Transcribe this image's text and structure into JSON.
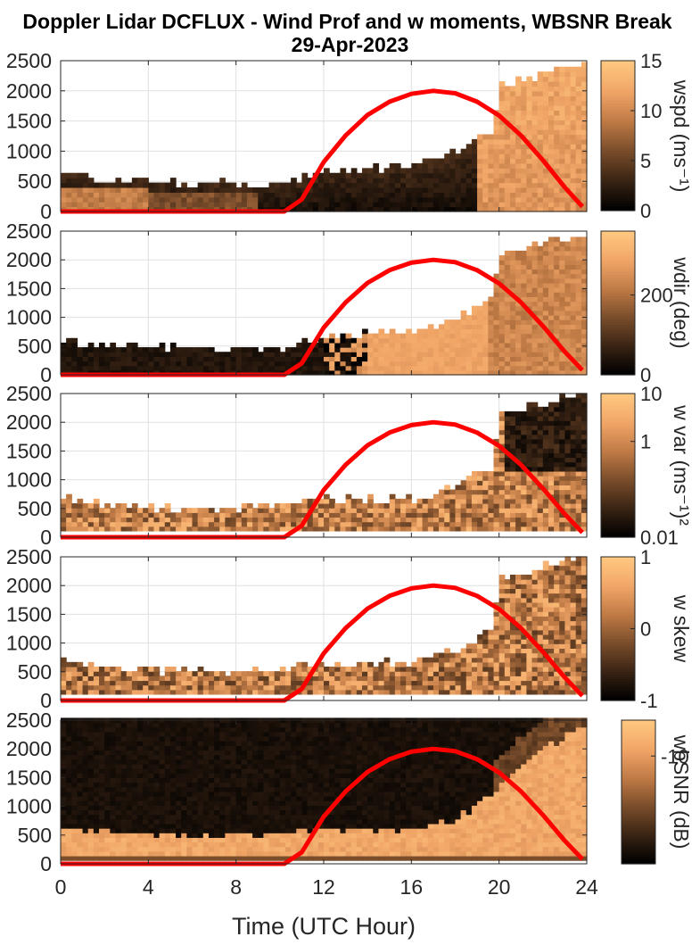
{
  "figure": {
    "title_line1": "Doppler Lidar DCFLUX - Wind Prof and w moments, WBSNR Break",
    "title_line2": "29-Apr-2023",
    "xlabel": "Time (UTC Hour)"
  },
  "colors": {
    "colormap": [
      "#000000",
      "#3a2414",
      "#7a4d2b",
      "#bf7a45",
      "#f0a567",
      "#ffc77f"
    ],
    "overlay_curve": "#ff0000",
    "grid": "#e0e0e0",
    "axis": "#262626"
  },
  "chart_data": [
    {
      "type": "heatmap",
      "panel": "wspd",
      "colorbar_label": "wspd (ms⁻¹)",
      "clim": [
        0,
        15
      ],
      "colorbar_ticks": [
        "0",
        "5",
        "10",
        "15"
      ],
      "x": {
        "range": [
          0,
          24
        ],
        "ticks": [
          "0",
          "4",
          "8",
          "12",
          "16",
          "20",
          "24"
        ]
      },
      "y": {
        "range": [
          0,
          2500
        ],
        "ticks": [
          "0",
          "500",
          "1000",
          "1500",
          "2000",
          "2500"
        ]
      },
      "grid": true,
      "data_extent_top_m": [
        [
          0,
          550
        ],
        [
          2,
          480
        ],
        [
          6,
          420
        ],
        [
          10,
          420
        ],
        [
          12,
          620
        ],
        [
          16,
          720
        ],
        [
          18,
          950
        ],
        [
          19.5,
          1300
        ],
        [
          20,
          2100
        ],
        [
          22,
          2250
        ],
        [
          24,
          2450
        ]
      ],
      "overlay_curve": {
        "x": [
          0,
          10.2,
          11,
          12,
          13,
          14,
          15,
          16,
          17,
          18,
          19,
          20,
          21,
          22,
          23,
          23.8
        ],
        "y": [
          0,
          0,
          200,
          820,
          1260,
          1600,
          1820,
          1950,
          2000,
          1960,
          1820,
          1590,
          1260,
          850,
          400,
          80
        ]
      }
    },
    {
      "type": "heatmap",
      "panel": "wdir",
      "colorbar_label": "wdir (deg)",
      "clim": [
        0,
        360
      ],
      "colorbar_ticks": [
        "0",
        "200"
      ],
      "x": {
        "range": [
          0,
          24
        ],
        "ticks": [
          "0",
          "4",
          "8",
          "12",
          "16",
          "20",
          "24"
        ]
      },
      "y": {
        "range": [
          0,
          2500
        ],
        "ticks": [
          "0",
          "500",
          "1000",
          "1500",
          "2000",
          "2500"
        ]
      },
      "grid": true,
      "data_extent_top_m": [
        [
          0,
          550
        ],
        [
          2,
          480
        ],
        [
          6,
          420
        ],
        [
          10,
          420
        ],
        [
          12,
          620
        ],
        [
          16,
          720
        ],
        [
          18,
          950
        ],
        [
          19.5,
          1300
        ],
        [
          20,
          2100
        ],
        [
          22,
          2250
        ],
        [
          24,
          2450
        ]
      ],
      "overlay_curve": {
        "x": [
          0,
          10.2,
          11,
          12,
          13,
          14,
          15,
          16,
          17,
          18,
          19,
          20,
          21,
          22,
          23,
          23.8
        ],
        "y": [
          0,
          0,
          200,
          820,
          1260,
          1600,
          1820,
          1950,
          2000,
          1960,
          1820,
          1590,
          1260,
          850,
          400,
          80
        ]
      }
    },
    {
      "type": "heatmap",
      "panel": "w var",
      "colorbar_label": "w var (ms⁻¹)²",
      "clim": [
        0.01,
        10
      ],
      "log_scale": true,
      "colorbar_ticks": [
        "0.01",
        "1",
        "10"
      ],
      "x": {
        "range": [
          0,
          24
        ],
        "ticks": [
          "0",
          "4",
          "8",
          "12",
          "16",
          "20",
          "24"
        ]
      },
      "y": {
        "range": [
          0,
          2500
        ],
        "ticks": [
          "0",
          "500",
          "1000",
          "1500",
          "2000",
          "2500"
        ]
      },
      "grid": true,
      "data_extent_top_m": [
        [
          0,
          650
        ],
        [
          2,
          520
        ],
        [
          6,
          460
        ],
        [
          10,
          520
        ],
        [
          12,
          620
        ],
        [
          16,
          620
        ],
        [
          18,
          850
        ],
        [
          19.5,
          1200
        ],
        [
          20,
          2100
        ],
        [
          22,
          2300
        ],
        [
          24,
          2480
        ]
      ],
      "overlay_curve": {
        "x": [
          0,
          10.2,
          11,
          12,
          13,
          14,
          15,
          16,
          17,
          18,
          19,
          20,
          21,
          22,
          23,
          23.8
        ],
        "y": [
          0,
          0,
          200,
          820,
          1260,
          1600,
          1820,
          1950,
          2000,
          1960,
          1820,
          1590,
          1260,
          850,
          400,
          80
        ]
      }
    },
    {
      "type": "heatmap",
      "panel": "w skew",
      "colorbar_label": "w skew",
      "clim": [
        -1,
        1
      ],
      "colorbar_ticks": [
        "-1",
        "0",
        "1"
      ],
      "x": {
        "range": [
          0,
          24
        ],
        "ticks": [
          "0",
          "4",
          "8",
          "12",
          "16",
          "20",
          "24"
        ]
      },
      "y": {
        "range": [
          0,
          2500
        ],
        "ticks": [
          "0",
          "500",
          "1000",
          "1500",
          "2000",
          "2500"
        ]
      },
      "grid": true,
      "data_extent_top_m": [
        [
          0,
          650
        ],
        [
          2,
          520
        ],
        [
          6,
          460
        ],
        [
          10,
          520
        ],
        [
          12,
          620
        ],
        [
          16,
          620
        ],
        [
          18,
          850
        ],
        [
          19.5,
          1200
        ],
        [
          20,
          2100
        ],
        [
          22,
          2300
        ],
        [
          24,
          2480
        ]
      ],
      "overlay_curve": {
        "x": [
          0,
          10.2,
          11,
          12,
          13,
          14,
          15,
          16,
          17,
          18,
          19,
          20,
          21,
          22,
          23,
          23.8
        ],
        "y": [
          0,
          0,
          200,
          820,
          1260,
          1600,
          1820,
          1950,
          2000,
          1960,
          1820,
          1590,
          1260,
          850,
          400,
          80
        ]
      }
    },
    {
      "type": "heatmap",
      "panel": "wbSNR",
      "colorbar_label": "wbSNR (dB)",
      "clim": [
        -25,
        -5
      ],
      "colorbar_ticks": [
        "-10"
      ],
      "x": {
        "range": [
          0,
          24
        ],
        "ticks": [
          "0",
          "4",
          "8",
          "12",
          "16",
          "20",
          "24"
        ]
      },
      "y": {
        "range": [
          0,
          2500
        ],
        "ticks": [
          "0",
          "500",
          "1000",
          "1500",
          "2000",
          "2500"
        ]
      },
      "grid": false,
      "high_snr_layer_top_m": [
        [
          0,
          600
        ],
        [
          2,
          520
        ],
        [
          6,
          450
        ],
        [
          10,
          500
        ],
        [
          12,
          550
        ],
        [
          16,
          550
        ],
        [
          18,
          750
        ],
        [
          19.5,
          1150
        ],
        [
          20,
          1400
        ],
        [
          22,
          2000
        ],
        [
          24,
          2400
        ]
      ],
      "overlay_curve": {
        "x": [
          0,
          10.2,
          11,
          12,
          13,
          14,
          15,
          16,
          17,
          18,
          19,
          20,
          21,
          22,
          23,
          23.8
        ],
        "y": [
          0,
          0,
          200,
          820,
          1260,
          1600,
          1820,
          1950,
          2000,
          1960,
          1820,
          1590,
          1260,
          850,
          400,
          80
        ]
      }
    }
  ]
}
